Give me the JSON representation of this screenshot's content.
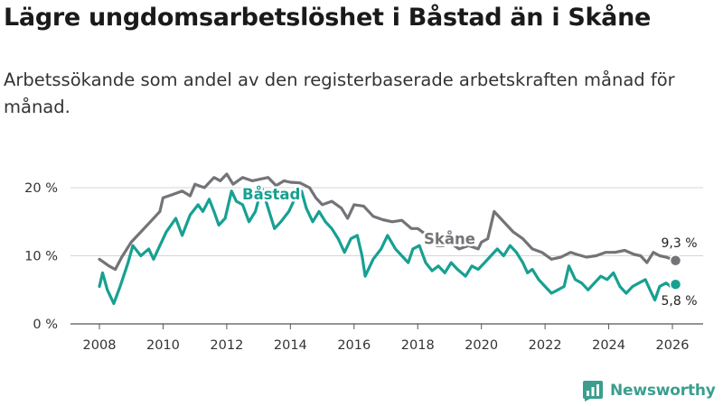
{
  "title": "Lägre ungdomsarbetslöshet i Båstad än i Skåne",
  "subtitle": "Arbetssökande som andel av den registerbaserade arbetskraften månad för månad.",
  "brand": {
    "name": "Newsworthy"
  },
  "colors": {
    "bastad": "#17a092",
    "skane": "#747378",
    "grid": "#d5d5d5",
    "axis": "#555555",
    "text": "#333333",
    "brand": "#3b9e8e"
  },
  "chart_data": {
    "type": "line",
    "title": "Lägre ungdomsarbetslöshet i Båstad än i Skåne",
    "xlabel": "",
    "ylabel": "",
    "xlim": [
      2007.5,
      2027.0
    ],
    "ylim": [
      0,
      20
    ],
    "x_ticks": [
      {
        "value": 2008,
        "label": "2008"
      },
      {
        "value": 2010,
        "label": "2010"
      },
      {
        "value": 2012,
        "label": "2012"
      },
      {
        "value": 2014,
        "label": "2014"
      },
      {
        "value": 2016,
        "label": "2016"
      },
      {
        "value": 2018,
        "label": "2018"
      },
      {
        "value": 2020,
        "label": "2020"
      },
      {
        "value": 2022,
        "label": "2022"
      },
      {
        "value": 2024,
        "label": "2024"
      },
      {
        "value": 2026,
        "label": "2026"
      }
    ],
    "y_ticks": [
      {
        "value": 0,
        "label": "0 %"
      },
      {
        "value": 10,
        "label": "10 %"
      },
      {
        "value": 20,
        "label": "20 %"
      }
    ],
    "series": [
      {
        "name": "Skåne",
        "color": "#747378",
        "label_at": [
          2019.0,
          11.7
        ],
        "end_label": "9,3 %",
        "points": [
          [
            2008.0,
            9.5
          ],
          [
            2008.3,
            8.5
          ],
          [
            2008.5,
            8.0
          ],
          [
            2008.7,
            9.8
          ],
          [
            2009.0,
            12.0
          ],
          [
            2009.3,
            13.5
          ],
          [
            2009.6,
            15.0
          ],
          [
            2009.9,
            16.5
          ],
          [
            2010.0,
            18.5
          ],
          [
            2010.3,
            19.0
          ],
          [
            2010.6,
            19.5
          ],
          [
            2010.85,
            18.8
          ],
          [
            2011.0,
            20.5
          ],
          [
            2011.3,
            20.0
          ],
          [
            2011.6,
            21.5
          ],
          [
            2011.8,
            21.0
          ],
          [
            2012.0,
            22.0
          ],
          [
            2012.2,
            20.5
          ],
          [
            2012.5,
            21.5
          ],
          [
            2012.8,
            21.0
          ],
          [
            2013.0,
            21.2
          ],
          [
            2013.3,
            21.5
          ],
          [
            2013.55,
            20.3
          ],
          [
            2013.8,
            21.0
          ],
          [
            2014.0,
            20.8
          ],
          [
            2014.3,
            20.7
          ],
          [
            2014.6,
            20.0
          ],
          [
            2014.8,
            18.5
          ],
          [
            2015.0,
            17.5
          ],
          [
            2015.3,
            18.0
          ],
          [
            2015.6,
            17.0
          ],
          [
            2015.8,
            15.5
          ],
          [
            2016.0,
            17.5
          ],
          [
            2016.3,
            17.3
          ],
          [
            2016.6,
            15.8
          ],
          [
            2016.9,
            15.3
          ],
          [
            2017.2,
            15.0
          ],
          [
            2017.5,
            15.2
          ],
          [
            2017.8,
            14.0
          ],
          [
            2018.0,
            14.0
          ],
          [
            2018.3,
            13.0
          ],
          [
            2018.6,
            11.5
          ],
          [
            2018.8,
            11.5
          ],
          [
            2019.0,
            12.0
          ],
          [
            2019.3,
            11.0
          ],
          [
            2019.6,
            11.5
          ],
          [
            2019.9,
            11.0
          ],
          [
            2020.0,
            12.0
          ],
          [
            2020.2,
            12.5
          ],
          [
            2020.4,
            16.5
          ],
          [
            2020.6,
            15.5
          ],
          [
            2020.8,
            14.5
          ],
          [
            2021.0,
            13.5
          ],
          [
            2021.3,
            12.5
          ],
          [
            2021.6,
            11.0
          ],
          [
            2021.9,
            10.5
          ],
          [
            2022.2,
            9.5
          ],
          [
            2022.5,
            9.8
          ],
          [
            2022.8,
            10.5
          ],
          [
            2023.0,
            10.2
          ],
          [
            2023.3,
            9.8
          ],
          [
            2023.6,
            10.0
          ],
          [
            2023.9,
            10.5
          ],
          [
            2024.2,
            10.5
          ],
          [
            2024.5,
            10.8
          ],
          [
            2024.8,
            10.2
          ],
          [
            2025.0,
            10.0
          ],
          [
            2025.2,
            9.0
          ],
          [
            2025.4,
            10.5
          ],
          [
            2025.6,
            10.0
          ],
          [
            2025.8,
            9.8
          ],
          [
            2026.1,
            9.3
          ]
        ]
      },
      {
        "name": "Båstad",
        "color": "#17a092",
        "label_at": [
          2013.4,
          18.3
        ],
        "end_label": "5,8 %",
        "points": [
          [
            2008.0,
            5.5
          ],
          [
            2008.1,
            7.5
          ],
          [
            2008.25,
            5.0
          ],
          [
            2008.45,
            3.0
          ],
          [
            2008.65,
            5.5
          ],
          [
            2008.9,
            9.0
          ],
          [
            2009.05,
            11.5
          ],
          [
            2009.3,
            10.0
          ],
          [
            2009.55,
            11.0
          ],
          [
            2009.7,
            9.5
          ],
          [
            2009.9,
            11.5
          ],
          [
            2010.1,
            13.5
          ],
          [
            2010.4,
            15.5
          ],
          [
            2010.6,
            13.0
          ],
          [
            2010.85,
            16.0
          ],
          [
            2011.1,
            17.5
          ],
          [
            2011.25,
            16.5
          ],
          [
            2011.45,
            18.3
          ],
          [
            2011.6,
            16.5
          ],
          [
            2011.75,
            14.5
          ],
          [
            2011.95,
            15.5
          ],
          [
            2012.15,
            19.5
          ],
          [
            2012.3,
            18.0
          ],
          [
            2012.5,
            17.5
          ],
          [
            2012.7,
            15.0
          ],
          [
            2012.9,
            16.5
          ],
          [
            2013.1,
            20.0
          ],
          [
            2013.3,
            17.0
          ],
          [
            2013.5,
            14.0
          ],
          [
            2013.7,
            15.0
          ],
          [
            2013.95,
            16.5
          ],
          [
            2014.15,
            18.5
          ],
          [
            2014.35,
            19.5
          ],
          [
            2014.5,
            17.0
          ],
          [
            2014.7,
            15.0
          ],
          [
            2014.9,
            16.5
          ],
          [
            2015.1,
            15.0
          ],
          [
            2015.3,
            14.0
          ],
          [
            2015.5,
            12.5
          ],
          [
            2015.7,
            10.5
          ],
          [
            2015.9,
            12.5
          ],
          [
            2016.1,
            13.0
          ],
          [
            2016.25,
            10.0
          ],
          [
            2016.35,
            7.0
          ],
          [
            2016.6,
            9.5
          ],
          [
            2016.85,
            11.0
          ],
          [
            2017.05,
            13.0
          ],
          [
            2017.3,
            11.0
          ],
          [
            2017.5,
            10.0
          ],
          [
            2017.7,
            9.0
          ],
          [
            2017.85,
            11.0
          ],
          [
            2018.05,
            11.5
          ],
          [
            2018.25,
            9.0
          ],
          [
            2018.45,
            7.8
          ],
          [
            2018.65,
            8.5
          ],
          [
            2018.85,
            7.5
          ],
          [
            2019.05,
            9.0
          ],
          [
            2019.25,
            8.0
          ],
          [
            2019.5,
            7.0
          ],
          [
            2019.7,
            8.5
          ],
          [
            2019.9,
            8.0
          ],
          [
            2020.1,
            9.0
          ],
          [
            2020.3,
            10.0
          ],
          [
            2020.5,
            11.0
          ],
          [
            2020.7,
            10.0
          ],
          [
            2020.9,
            11.5
          ],
          [
            2021.1,
            10.5
          ],
          [
            2021.3,
            9.0
          ],
          [
            2021.45,
            7.5
          ],
          [
            2021.6,
            8.0
          ],
          [
            2021.8,
            6.5
          ],
          [
            2022.0,
            5.5
          ],
          [
            2022.2,
            4.5
          ],
          [
            2022.4,
            5.0
          ],
          [
            2022.6,
            5.5
          ],
          [
            2022.75,
            8.5
          ],
          [
            2022.95,
            6.5
          ],
          [
            2023.15,
            6.0
          ],
          [
            2023.35,
            5.0
          ],
          [
            2023.55,
            6.0
          ],
          [
            2023.75,
            7.0
          ],
          [
            2023.95,
            6.5
          ],
          [
            2024.15,
            7.5
          ],
          [
            2024.35,
            5.5
          ],
          [
            2024.55,
            4.5
          ],
          [
            2024.75,
            5.5
          ],
          [
            2024.95,
            6.0
          ],
          [
            2025.15,
            6.5
          ],
          [
            2025.3,
            5.0
          ],
          [
            2025.45,
            3.5
          ],
          [
            2025.6,
            5.5
          ],
          [
            2025.8,
            6.0
          ],
          [
            2025.95,
            5.5
          ],
          [
            2026.1,
            5.8
          ]
        ]
      }
    ]
  }
}
